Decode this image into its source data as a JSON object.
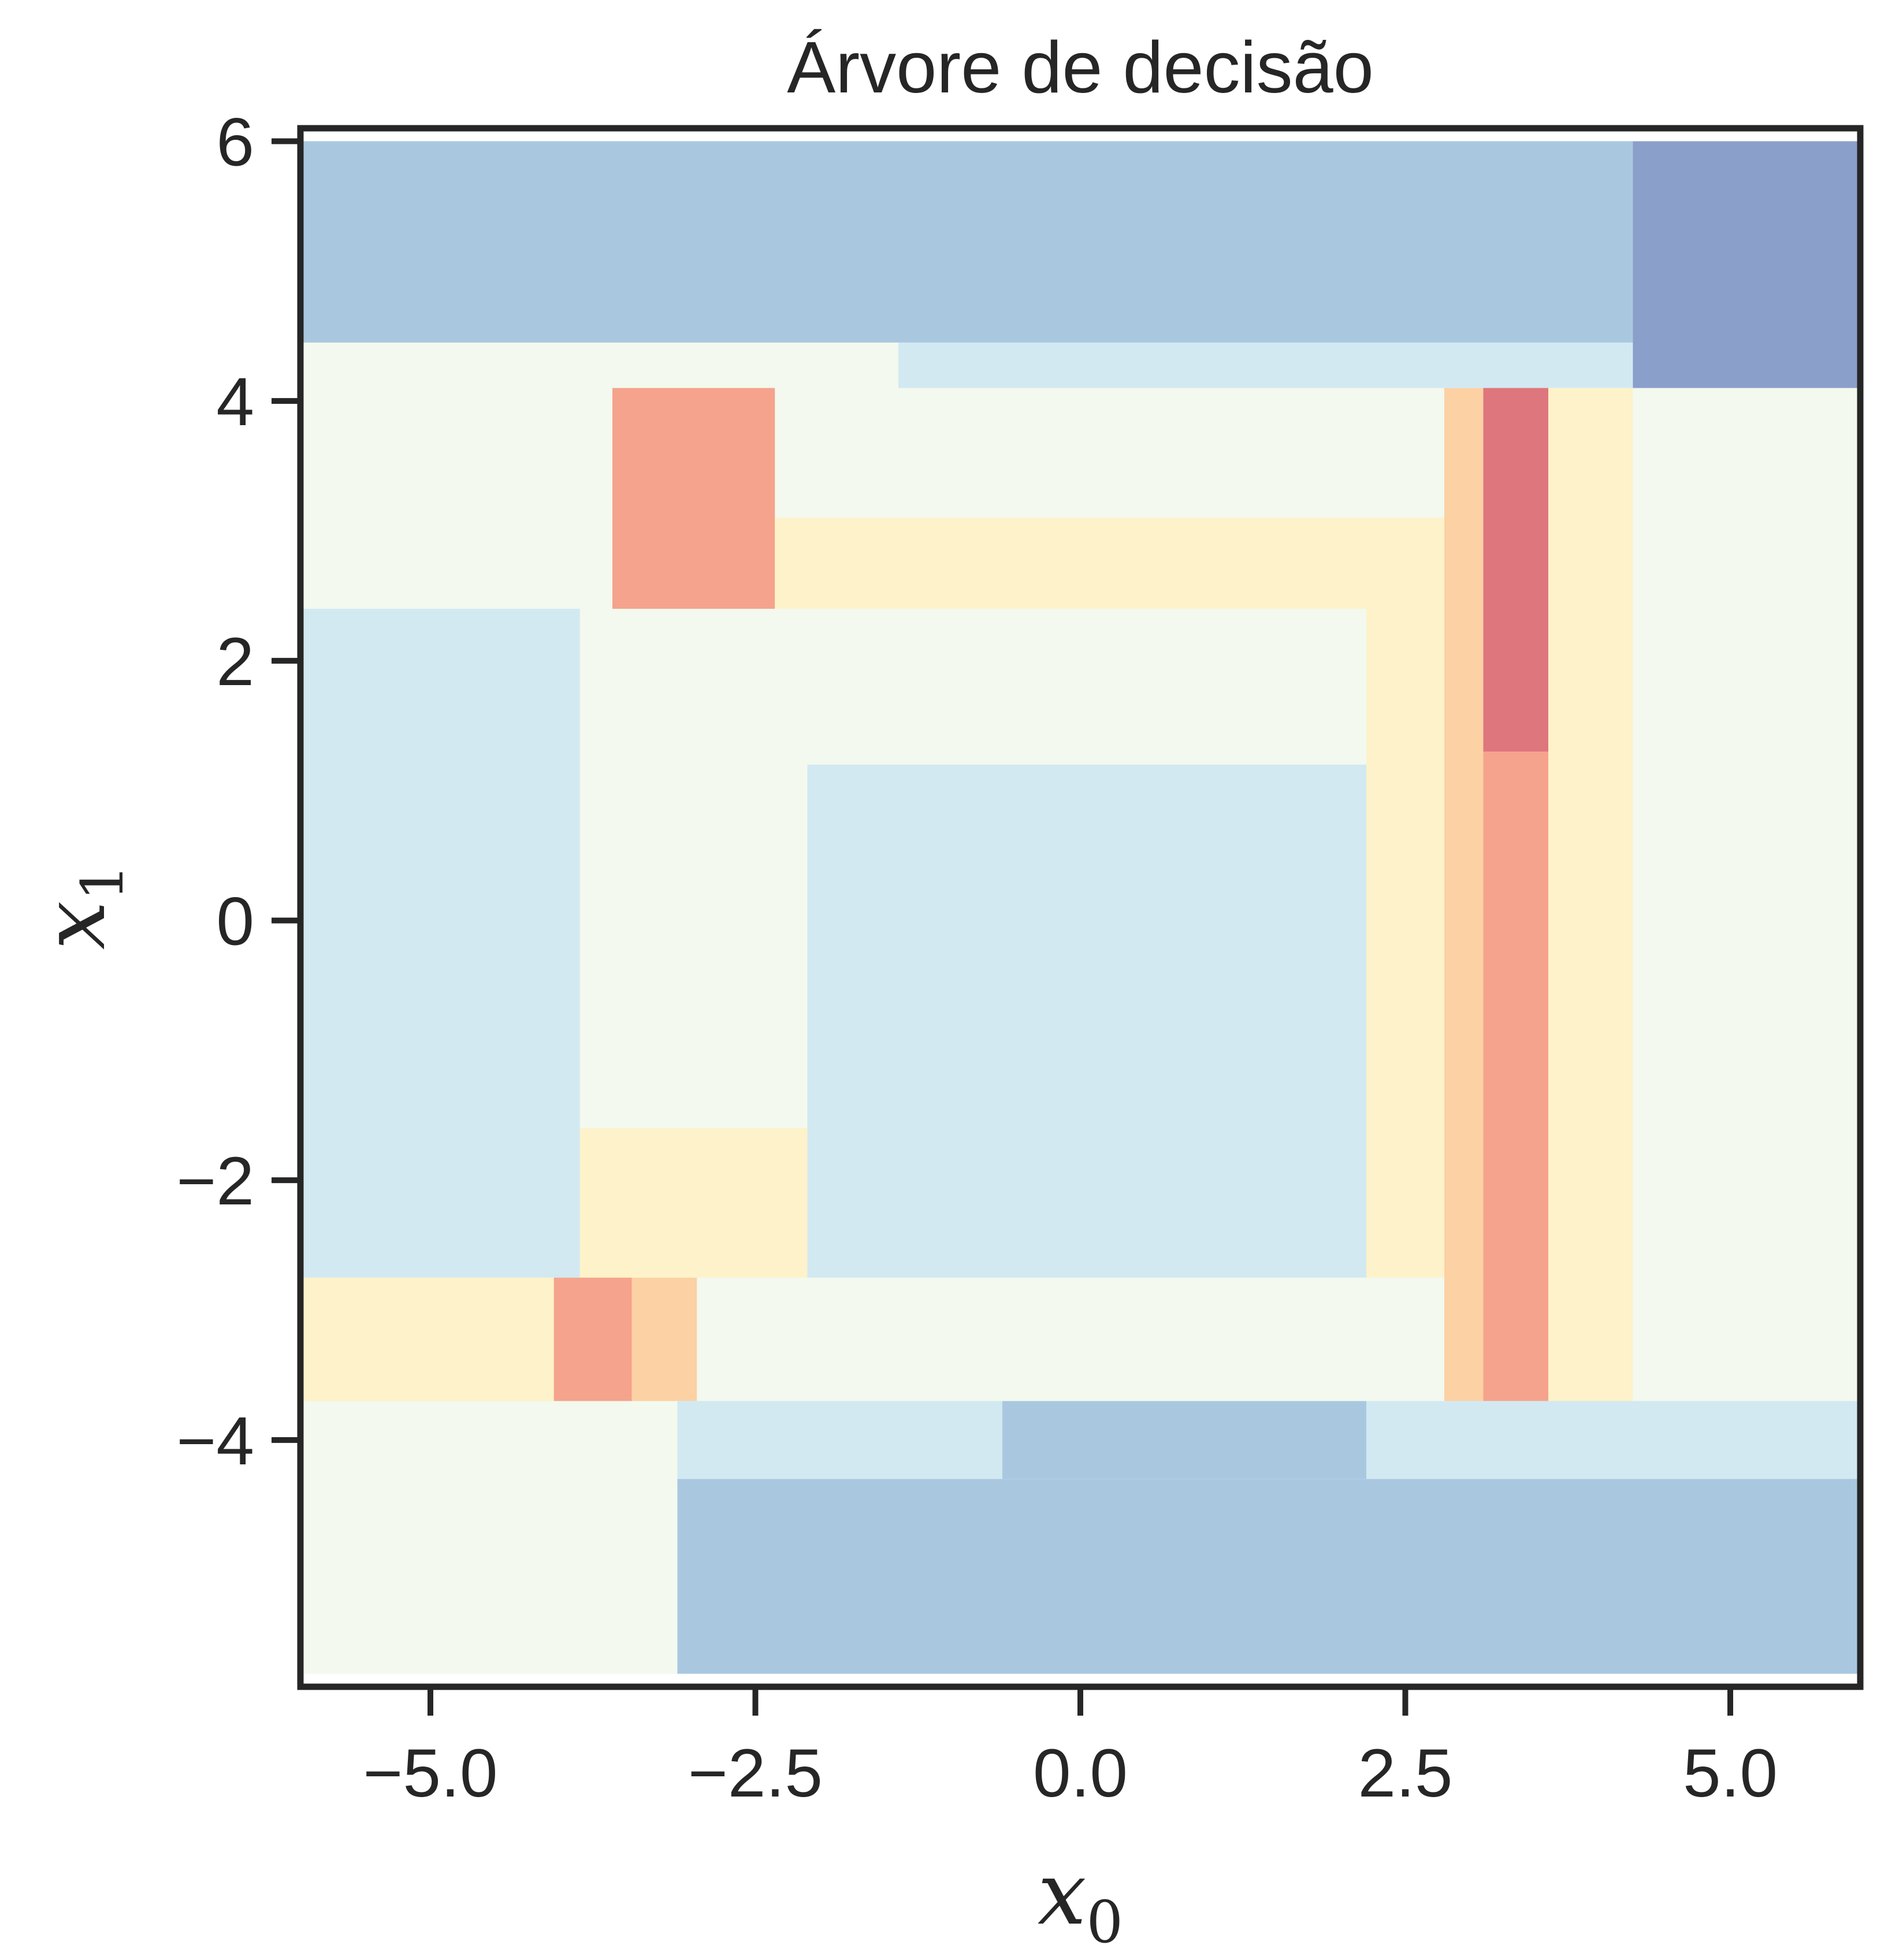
{
  "chart_data": {
    "type": "heatmap",
    "title": "Árvore de decisão",
    "xlabel": {
      "base": "x",
      "sub": "0"
    },
    "ylabel": {
      "base": "x",
      "sub": "1"
    },
    "xlim": [
      -6,
      6
    ],
    "ylim": [
      -5.9,
      6.1
    ],
    "x_ticks": [
      {
        "value": -5.0,
        "label": "−5.0"
      },
      {
        "value": -2.5,
        "label": "−2.5"
      },
      {
        "value": 0.0,
        "label": "0.0"
      },
      {
        "value": 2.5,
        "label": "2.5"
      },
      {
        "value": 5.0,
        "label": "5.0"
      }
    ],
    "y_ticks": [
      {
        "value": 6,
        "label": "6"
      },
      {
        "value": 4,
        "label": "4"
      },
      {
        "value": 2,
        "label": "2"
      },
      {
        "value": 0,
        "label": "0"
      },
      {
        "value": -2,
        "label": "−2"
      },
      {
        "value": -4,
        "label": "−4"
      }
    ],
    "grid": false,
    "region_colors": {
      "dark_blue": "#8a9fca",
      "blue": "#a9c8e0",
      "light_blue": "#d2e9f2",
      "pale_green": "#f3f9ee",
      "light_yellow": "#fdf2c9",
      "light_orange": "#fcd1a4",
      "salmon": "#f5a38c",
      "red": "#de767d"
    },
    "regions": [
      {
        "x0": -6.0,
        "x1": 6.0,
        "y0": -5.8,
        "y1": 6.0,
        "color": "pale_green"
      },
      {
        "x0": -6.0,
        "x1": 4.25,
        "y0": 4.45,
        "y1": 6.0,
        "color": "blue"
      },
      {
        "x0": 4.25,
        "x1": 6.0,
        "y0": 4.1,
        "y1": 6.0,
        "color": "dark_blue"
      },
      {
        "x0": -1.4,
        "x1": 4.25,
        "y0": 4.1,
        "y1": 4.45,
        "color": "light_blue"
      },
      {
        "x0": -3.6,
        "x1": -2.35,
        "y0": 2.4,
        "y1": 4.1,
        "color": "salmon"
      },
      {
        "x0": -2.35,
        "x1": 2.8,
        "y0": 2.4,
        "y1": 3.1,
        "color": "light_yellow"
      },
      {
        "x0": 2.2,
        "x1": 2.8,
        "y0": -2.75,
        "y1": 2.4,
        "color": "light_yellow"
      },
      {
        "x0": 2.8,
        "x1": 3.1,
        "y0": -3.7,
        "y1": 4.1,
        "color": "light_orange"
      },
      {
        "x0": 3.1,
        "x1": 3.6,
        "y0": -3.7,
        "y1": 1.3,
        "color": "salmon"
      },
      {
        "x0": 3.1,
        "x1": 3.6,
        "y0": 1.3,
        "y1": 4.1,
        "color": "red"
      },
      {
        "x0": 3.6,
        "x1": 4.25,
        "y0": -3.7,
        "y1": 4.1,
        "color": "light_yellow"
      },
      {
        "x0": -6.0,
        "x1": -3.85,
        "y0": -2.75,
        "y1": 2.4,
        "color": "light_blue"
      },
      {
        "x0": -2.1,
        "x1": 2.2,
        "y0": -2.75,
        "y1": 1.2,
        "color": "light_blue"
      },
      {
        "x0": -3.85,
        "x1": -2.1,
        "y0": -2.75,
        "y1": -1.6,
        "color": "light_yellow"
      },
      {
        "x0": -6.0,
        "x1": -4.05,
        "y0": -3.7,
        "y1": -2.75,
        "color": "light_yellow"
      },
      {
        "x0": -4.05,
        "x1": -3.45,
        "y0": -3.7,
        "y1": -2.75,
        "color": "salmon"
      },
      {
        "x0": -3.45,
        "x1": -2.95,
        "y0": -3.7,
        "y1": -2.75,
        "color": "light_orange"
      },
      {
        "x0": -3.1,
        "x1": -0.6,
        "y0": -4.3,
        "y1": -3.7,
        "color": "light_blue"
      },
      {
        "x0": 2.2,
        "x1": 6.0,
        "y0": -4.3,
        "y1": -3.7,
        "color": "light_blue"
      },
      {
        "x0": -0.6,
        "x1": 2.2,
        "y0": -4.3,
        "y1": -3.7,
        "color": "blue"
      },
      {
        "x0": -3.1,
        "x1": 6.0,
        "y0": -5.8,
        "y1": -4.3,
        "color": "blue"
      }
    ]
  }
}
